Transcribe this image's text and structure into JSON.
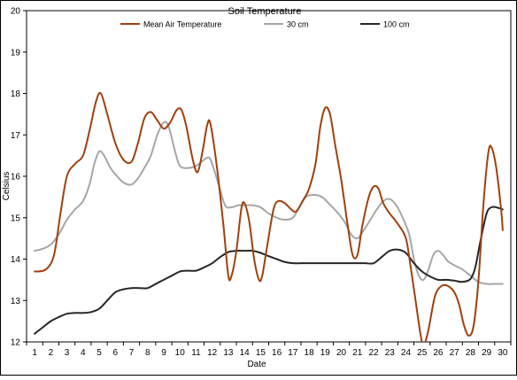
{
  "chart_data": {
    "type": "line",
    "title": "Soil Temperature",
    "xlabel": "Date",
    "ylabel": "Celsius",
    "x": [
      1,
      2,
      3,
      4,
      5,
      6,
      7,
      8,
      9,
      10,
      11,
      12,
      13,
      14,
      15,
      16,
      17,
      18,
      19,
      20,
      21,
      22,
      23,
      24,
      25,
      26,
      27,
      28,
      29,
      30
    ],
    "ylim": [
      12,
      20
    ],
    "yticks": [
      12,
      13,
      14,
      15,
      16,
      17,
      18,
      19,
      20
    ],
    "grid": false,
    "legend_position": "top",
    "series": [
      {
        "name": "Mean Air Temperature",
        "color": "#a0400c",
        "points": [
          [
            1,
            13.7
          ],
          [
            1.7,
            13.75
          ],
          [
            2.2,
            14.1
          ],
          [
            2.6,
            15.1
          ],
          [
            3,
            16.0
          ],
          [
            3.5,
            16.3
          ],
          [
            4,
            16.5
          ],
          [
            4.4,
            17.1
          ],
          [
            4.8,
            17.8
          ],
          [
            5.1,
            18.0
          ],
          [
            5.5,
            17.5
          ],
          [
            6,
            16.8
          ],
          [
            6.5,
            16.4
          ],
          [
            7,
            16.35
          ],
          [
            7.4,
            16.8
          ],
          [
            7.8,
            17.4
          ],
          [
            8.2,
            17.55
          ],
          [
            8.6,
            17.35
          ],
          [
            9,
            17.15
          ],
          [
            9.4,
            17.3
          ],
          [
            9.8,
            17.6
          ],
          [
            10.1,
            17.6
          ],
          [
            10.4,
            17.2
          ],
          [
            10.8,
            16.4
          ],
          [
            11.1,
            16.1
          ],
          [
            11.4,
            16.6
          ],
          [
            11.7,
            17.25
          ],
          [
            11.9,
            17.25
          ],
          [
            12.3,
            16.2
          ],
          [
            12.7,
            14.8
          ],
          [
            13,
            13.6
          ],
          [
            13.2,
            13.6
          ],
          [
            13.5,
            14.2
          ],
          [
            13.8,
            15.2
          ],
          [
            14,
            15.35
          ],
          [
            14.3,
            14.9
          ],
          [
            14.6,
            14.0
          ],
          [
            14.9,
            13.5
          ],
          [
            15.1,
            13.6
          ],
          [
            15.4,
            14.3
          ],
          [
            15.8,
            15.2
          ],
          [
            16.1,
            15.4
          ],
          [
            16.5,
            15.35
          ],
          [
            16.9,
            15.2
          ],
          [
            17.2,
            15.15
          ],
          [
            17.6,
            15.4
          ],
          [
            18,
            15.7
          ],
          [
            18.4,
            16.3
          ],
          [
            18.7,
            17.2
          ],
          [
            19,
            17.65
          ],
          [
            19.3,
            17.5
          ],
          [
            19.6,
            16.8
          ],
          [
            20,
            15.9
          ],
          [
            20.4,
            14.8
          ],
          [
            20.7,
            14.1
          ],
          [
            21,
            14.1
          ],
          [
            21.3,
            14.8
          ],
          [
            21.7,
            15.5
          ],
          [
            22,
            15.75
          ],
          [
            22.3,
            15.7
          ],
          [
            22.6,
            15.35
          ],
          [
            23,
            15.1
          ],
          [
            23.5,
            14.85
          ],
          [
            24,
            14.5
          ],
          [
            24.3,
            13.8
          ],
          [
            24.6,
            13.0
          ],
          [
            24.9,
            12.2
          ],
          [
            25.1,
            11.9
          ],
          [
            25.4,
            12.3
          ],
          [
            25.8,
            13.1
          ],
          [
            26.2,
            13.35
          ],
          [
            26.6,
            13.35
          ],
          [
            27,
            13.2
          ],
          [
            27.3,
            12.9
          ],
          [
            27.6,
            12.4
          ],
          [
            27.9,
            12.15
          ],
          [
            28.2,
            12.4
          ],
          [
            28.5,
            13.5
          ],
          [
            28.8,
            15.3
          ],
          [
            29.1,
            16.55
          ],
          [
            29.3,
            16.7
          ],
          [
            29.6,
            16.2
          ],
          [
            29.9,
            15.2
          ],
          [
            30,
            14.7
          ]
        ]
      },
      {
        "name": "30 cm",
        "color": "#a6a6a6",
        "points": [
          [
            1,
            14.2
          ],
          [
            1.5,
            14.25
          ],
          [
            2,
            14.35
          ],
          [
            2.5,
            14.6
          ],
          [
            3,
            14.95
          ],
          [
            3.5,
            15.2
          ],
          [
            4,
            15.4
          ],
          [
            4.4,
            15.8
          ],
          [
            4.7,
            16.3
          ],
          [
            5,
            16.6
          ],
          [
            5.3,
            16.5
          ],
          [
            5.7,
            16.2
          ],
          [
            6,
            16.05
          ],
          [
            6.5,
            15.85
          ],
          [
            7,
            15.8
          ],
          [
            7.4,
            15.95
          ],
          [
            7.8,
            16.2
          ],
          [
            8.2,
            16.5
          ],
          [
            8.6,
            17.0
          ],
          [
            9,
            17.3
          ],
          [
            9.3,
            17.2
          ],
          [
            9.7,
            16.6
          ],
          [
            10,
            16.25
          ],
          [
            10.5,
            16.2
          ],
          [
            11,
            16.25
          ],
          [
            11.5,
            16.4
          ],
          [
            11.8,
            16.45
          ],
          [
            12,
            16.3
          ],
          [
            12.4,
            15.8
          ],
          [
            12.8,
            15.3
          ],
          [
            13.2,
            15.25
          ],
          [
            13.6,
            15.3
          ],
          [
            14,
            15.3
          ],
          [
            14.5,
            15.3
          ],
          [
            15,
            15.25
          ],
          [
            15.5,
            15.1
          ],
          [
            16,
            15.0
          ],
          [
            16.5,
            14.95
          ],
          [
            17,
            15.0
          ],
          [
            17.4,
            15.25
          ],
          [
            17.8,
            15.5
          ],
          [
            18.3,
            15.55
          ],
          [
            18.8,
            15.5
          ],
          [
            19.2,
            15.35
          ],
          [
            19.7,
            15.15
          ],
          [
            20.2,
            14.9
          ],
          [
            20.6,
            14.6
          ],
          [
            21,
            14.5
          ],
          [
            21.4,
            14.7
          ],
          [
            21.8,
            14.95
          ],
          [
            22.2,
            15.2
          ],
          [
            22.6,
            15.4
          ],
          [
            23,
            15.45
          ],
          [
            23.4,
            15.3
          ],
          [
            23.8,
            15.0
          ],
          [
            24.2,
            14.6
          ],
          [
            24.5,
            14.0
          ],
          [
            24.8,
            13.6
          ],
          [
            25.1,
            13.5
          ],
          [
            25.4,
            13.75
          ],
          [
            25.7,
            14.1
          ],
          [
            26,
            14.2
          ],
          [
            26.3,
            14.1
          ],
          [
            26.6,
            13.95
          ],
          [
            27,
            13.85
          ],
          [
            27.5,
            13.75
          ],
          [
            28,
            13.6
          ],
          [
            28.5,
            13.45
          ],
          [
            29,
            13.4
          ],
          [
            29.5,
            13.4
          ],
          [
            30,
            13.4
          ]
        ]
      },
      {
        "name": "100 cm",
        "color": "#262626",
        "points": [
          [
            1,
            12.2
          ],
          [
            1.5,
            12.35
          ],
          [
            2,
            12.5
          ],
          [
            2.5,
            12.6
          ],
          [
            3,
            12.68
          ],
          [
            3.5,
            12.7
          ],
          [
            4,
            12.7
          ],
          [
            4.5,
            12.72
          ],
          [
            5,
            12.8
          ],
          [
            5.5,
            13.0
          ],
          [
            6,
            13.2
          ],
          [
            6.5,
            13.27
          ],
          [
            7,
            13.3
          ],
          [
            7.5,
            13.3
          ],
          [
            8,
            13.3
          ],
          [
            8.5,
            13.4
          ],
          [
            9,
            13.5
          ],
          [
            9.5,
            13.6
          ],
          [
            10,
            13.7
          ],
          [
            10.5,
            13.72
          ],
          [
            11,
            13.72
          ],
          [
            11.5,
            13.8
          ],
          [
            12,
            13.9
          ],
          [
            12.5,
            14.05
          ],
          [
            13,
            14.17
          ],
          [
            13.5,
            14.2
          ],
          [
            14,
            14.2
          ],
          [
            14.5,
            14.2
          ],
          [
            15,
            14.15
          ],
          [
            15.5,
            14.07
          ],
          [
            16,
            14.0
          ],
          [
            16.5,
            13.93
          ],
          [
            17,
            13.9
          ],
          [
            17.5,
            13.9
          ],
          [
            18,
            13.9
          ],
          [
            18.5,
            13.9
          ],
          [
            19,
            13.9
          ],
          [
            19.5,
            13.9
          ],
          [
            20,
            13.9
          ],
          [
            20.5,
            13.9
          ],
          [
            21,
            13.9
          ],
          [
            21.5,
            13.9
          ],
          [
            22,
            13.9
          ],
          [
            22.5,
            14.05
          ],
          [
            23,
            14.2
          ],
          [
            23.5,
            14.23
          ],
          [
            24,
            14.15
          ],
          [
            24.5,
            13.9
          ],
          [
            25,
            13.7
          ],
          [
            25.5,
            13.58
          ],
          [
            26,
            13.5
          ],
          [
            26.5,
            13.5
          ],
          [
            27,
            13.48
          ],
          [
            27.5,
            13.45
          ],
          [
            28,
            13.52
          ],
          [
            28.3,
            13.8
          ],
          [
            28.6,
            14.4
          ],
          [
            29,
            15.1
          ],
          [
            29.3,
            15.25
          ],
          [
            29.6,
            15.25
          ],
          [
            30,
            15.2
          ]
        ]
      }
    ]
  }
}
